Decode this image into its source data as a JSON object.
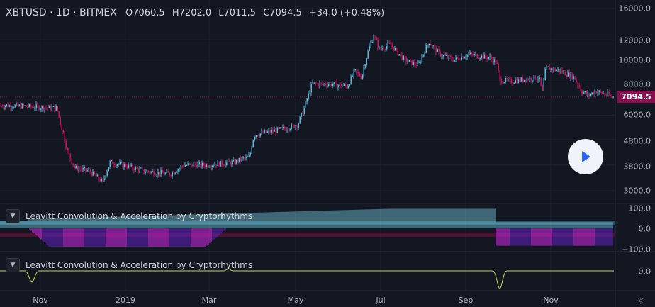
{
  "header": {
    "symbol": "XBTUSD · 1D · BITMEX",
    "open": "O7060.5",
    "high": "H7202.0",
    "low": "L7011.5",
    "close": "C7094.5",
    "change": "+34.0 (+0.48%)"
  },
  "price_axis": {
    "labels": [
      "16000.0",
      "12000.0",
      "10000.0",
      "8000.0",
      "6000.0",
      "4800.0",
      "3800.0",
      "3000.0"
    ],
    "last_price": "7094.5"
  },
  "indicators": [
    {
      "title": "Leavitt Convolution & Acceleration by Cryptorhythms",
      "axis": [
        "100.0",
        "0.0",
        "−100.0"
      ]
    },
    {
      "title": "Leavitt Convolution & Acceleration by Cryptorhythms",
      "axis": [
        "0.0"
      ]
    }
  ],
  "time_axis": [
    "Nov",
    "2019",
    "Mar",
    "May",
    "Jul",
    "Sep",
    "Nov"
  ],
  "colors": {
    "up": "#5fb6d6",
    "down": "#c2185b",
    "last": "#880e4f",
    "accent": "#2962ff",
    "line": "#c8d64a"
  },
  "chart_data": {
    "type": "candlestick",
    "price_path": [
      [
        0,
        6600
      ],
      [
        80,
        6400
      ],
      [
        85,
        5600
      ],
      [
        95,
        4300
      ],
      [
        105,
        3700
      ],
      [
        125,
        3600
      ],
      [
        145,
        3250
      ],
      [
        155,
        3900
      ],
      [
        175,
        3800
      ],
      [
        200,
        3600
      ],
      [
        240,
        3500
      ],
      [
        260,
        3800
      ],
      [
        290,
        3800
      ],
      [
        330,
        3900
      ],
      [
        352,
        4100
      ],
      [
        358,
        5000
      ],
      [
        400,
        5300
      ],
      [
        420,
        5500
      ],
      [
        430,
        6500
      ],
      [
        440,
        8000
      ],
      [
        470,
        8000
      ],
      [
        490,
        7800
      ],
      [
        500,
        9000
      ],
      [
        510,
        8500
      ],
      [
        520,
        11000
      ],
      [
        527,
        12500
      ],
      [
        535,
        11000
      ],
      [
        550,
        11500
      ],
      [
        570,
        10000
      ],
      [
        590,
        9500
      ],
      [
        605,
        11800
      ],
      [
        620,
        10500
      ],
      [
        640,
        10000
      ],
      [
        660,
        10500
      ],
      [
        690,
        10200
      ],
      [
        700,
        9800
      ],
      [
        705,
        8300
      ],
      [
        720,
        8200
      ],
      [
        760,
        8500
      ],
      [
        765,
        7400
      ],
      [
        770,
        9300
      ],
      [
        790,
        9000
      ],
      [
        810,
        8500
      ],
      [
        820,
        7500
      ],
      [
        830,
        7200
      ],
      [
        840,
        7500
      ],
      [
        866,
        7094.5
      ]
    ]
  }
}
